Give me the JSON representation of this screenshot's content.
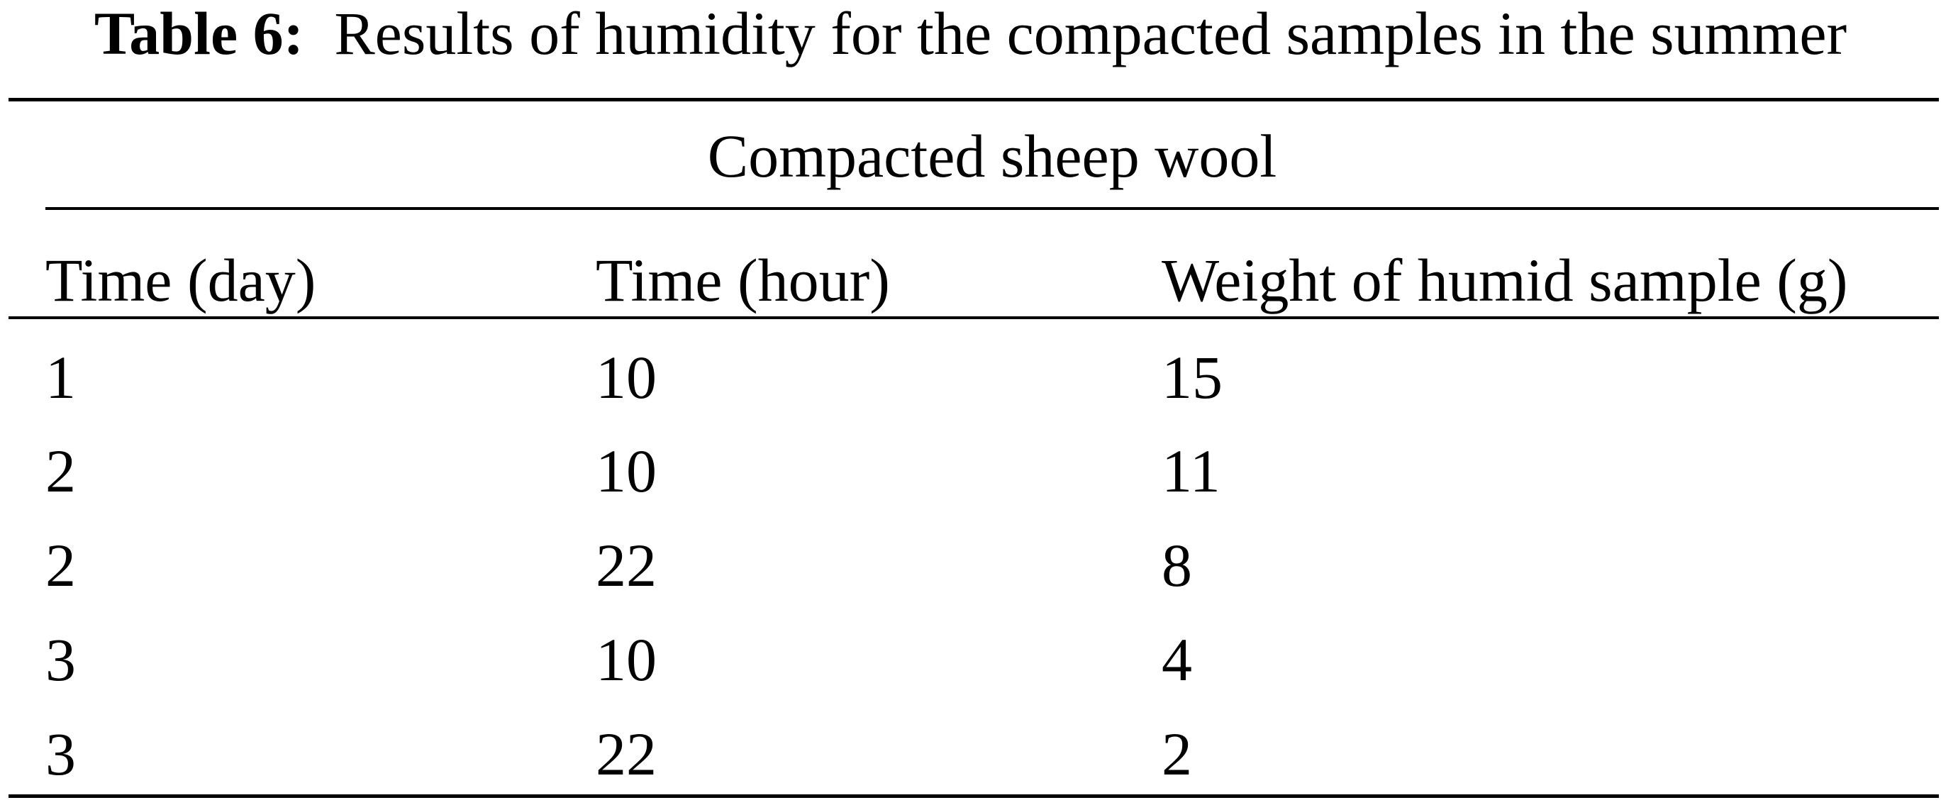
{
  "table": {
    "caption_label": "Table 6:",
    "caption_text": "Results of humidity for the compacted samples in the summer",
    "group_header": "Compacted sheep wool",
    "columns": [
      "Time (day)",
      "Time (hour)",
      "Weight of humid sample (g)"
    ],
    "rows": [
      [
        "1",
        "10",
        "15"
      ],
      [
        "2",
        "10",
        "11"
      ],
      [
        "2",
        "22",
        "8"
      ],
      [
        "3",
        "10",
        "4"
      ],
      [
        "3",
        "22",
        "2"
      ]
    ]
  }
}
